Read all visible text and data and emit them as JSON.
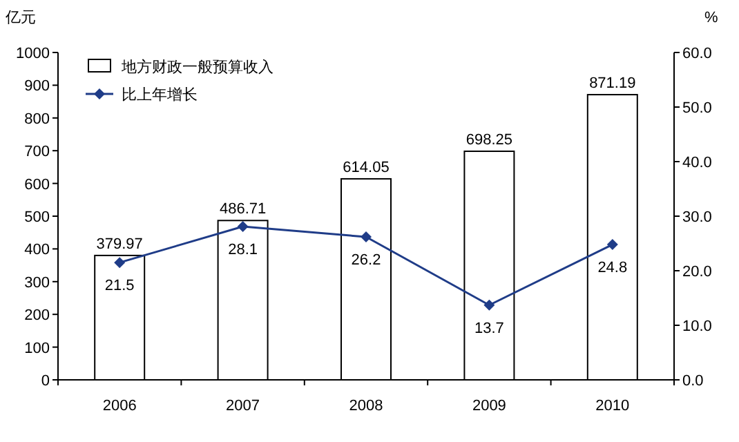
{
  "chart_data": {
    "type": "bar",
    "categories": [
      "2006",
      "2007",
      "2008",
      "2009",
      "2010"
    ],
    "series": [
      {
        "name": "地方财政一般预算收入",
        "color": "#ffffff",
        "values": [
          379.97,
          486.71,
          614.05,
          698.25,
          871.19
        ]
      },
      {
        "name": "比上年增长",
        "type": "line",
        "axis": "y2",
        "color": "#1f3c88",
        "values": [
          21.5,
          28.1,
          26.2,
          13.7,
          24.8
        ]
      }
    ],
    "ylabel": "亿元",
    "y2label": "%",
    "ylim": [
      0,
      1000
    ],
    "yticks": [
      0,
      100,
      200,
      300,
      400,
      500,
      600,
      700,
      800,
      900,
      1000
    ],
    "y2lim": [
      0,
      60
    ],
    "y2ticks": [
      {
        "value": 0,
        "label": "0.0"
      },
      {
        "value": 10,
        "label": "10.0"
      },
      {
        "value": 20,
        "label": "20.0"
      },
      {
        "value": 30,
        "label": "30.0"
      },
      {
        "value": 40,
        "label": "40.0"
      },
      {
        "value": 50,
        "label": "50.0"
      },
      {
        "value": 60,
        "label": "60.0"
      }
    ],
    "data_labels": true,
    "legend": "top left",
    "grid": false,
    "marker": "diamond",
    "line_style": "solid"
  }
}
